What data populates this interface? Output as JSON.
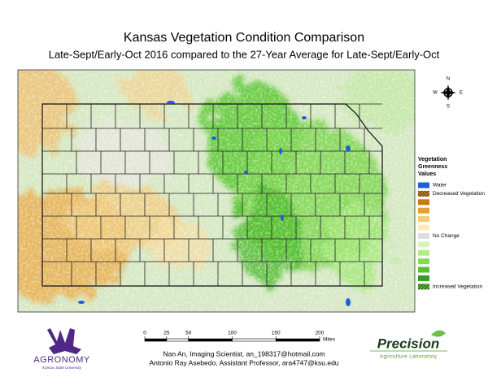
{
  "header": {
    "title": "Kansas Vegetation Condition Comparison",
    "subtitle": "Late-Sept/Early-Oct  2016 compared to the 27-Year Average for Late-Sept/Early-Oct"
  },
  "compass": {
    "north": "N",
    "south": "S",
    "east": "E",
    "west": "W"
  },
  "legend": {
    "title": [
      "Vegetation",
      "Greenness",
      "Values"
    ],
    "items": [
      {
        "label": "Water",
        "color": "#1c5fd8"
      },
      {
        "label": "Decreased Vegetation",
        "color": "#7a4a10"
      },
      {
        "color": "#c87a14"
      },
      {
        "color": "#e8a030"
      },
      {
        "color": "#f4cc78"
      },
      {
        "color": "#fcecb4"
      },
      {
        "label": "No Change",
        "color": "#dcdcdc"
      },
      {
        "color": "#d8f6b8"
      },
      {
        "color": "#b0ee84"
      },
      {
        "color": "#80dc54"
      },
      {
        "color": "#50c22c"
      },
      {
        "color": "#2ea01a"
      },
      {
        "label": "Increased Vegetation",
        "color": "#2a6e14"
      }
    ]
  },
  "scale_bar": {
    "ticks": [
      0,
      25,
      50,
      100,
      150,
      200
    ],
    "unit": "Miles"
  },
  "credits": [
    "Nan An, Imaging Scientist, an_198317@hotmail.com",
    "Antonio Ray Asebedo, Assistant Professor, ara4747@ksu.edu"
  ],
  "logos": {
    "left": {
      "name": "AGRONOMY",
      "subtitle": "Kansas State University"
    },
    "right": {
      "name": "Precision",
      "subtitle": "Agriculture Laboratory"
    }
  }
}
